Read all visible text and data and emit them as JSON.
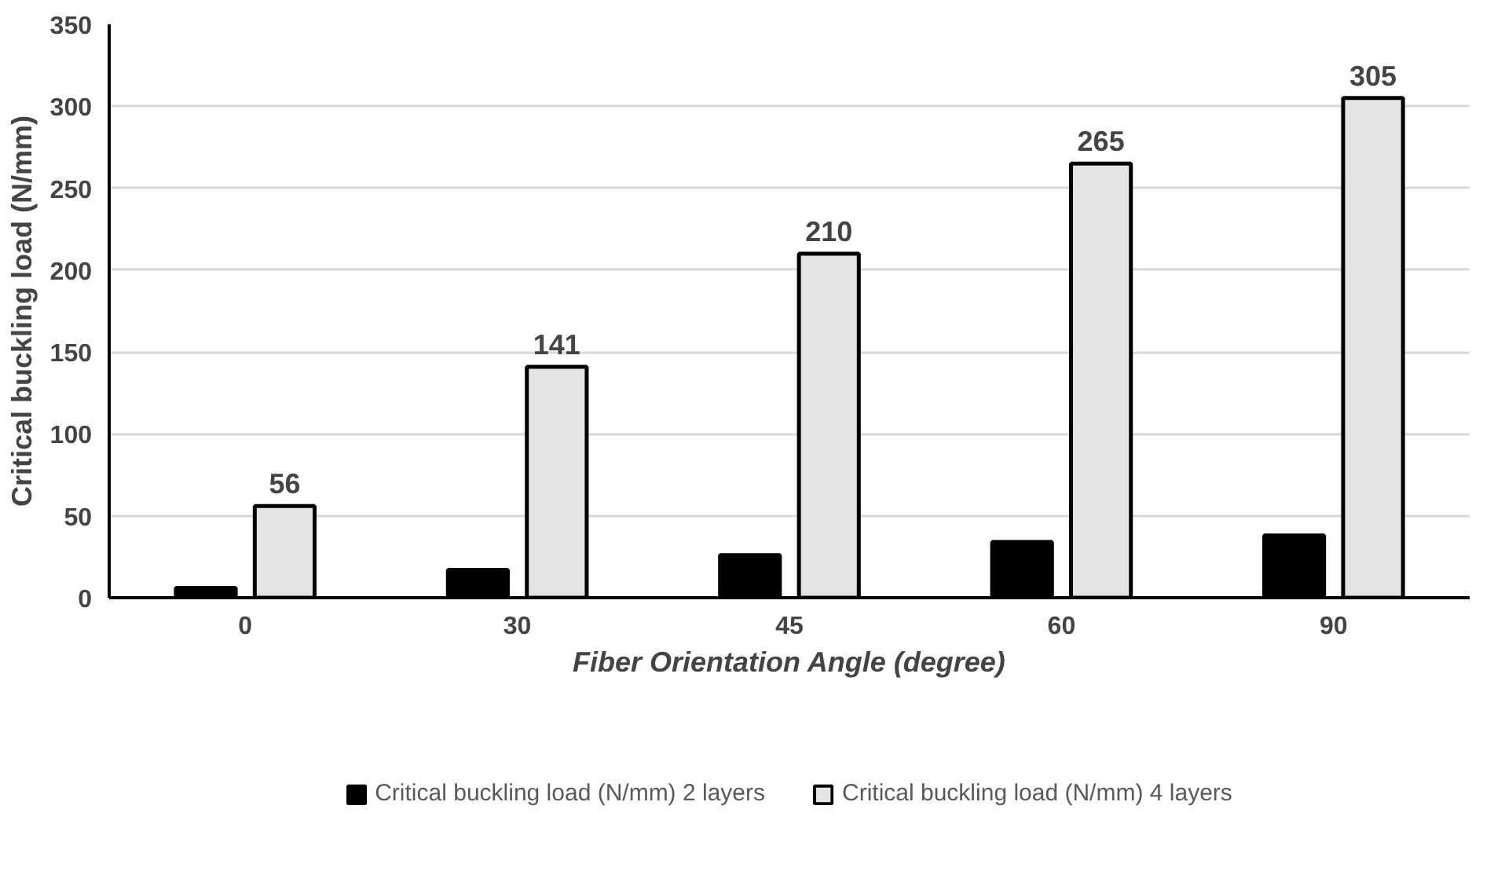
{
  "chart_data": {
    "type": "bar",
    "xlabel": "Fiber Orientation Angle (degree)",
    "ylabel": "Critical buckling load (N/mm)",
    "categories": [
      "0",
      "30",
      "45",
      "60",
      "90"
    ],
    "series": [
      {
        "name": "Critical buckling load (N/mm) 2 layers",
        "color": "#000000",
        "values": [
          6,
          17,
          26,
          34,
          38
        ]
      },
      {
        "name": "Critical buckling load (N/mm) 4 layers",
        "color": "#e4e4e4",
        "values": [
          56,
          141,
          210,
          265,
          305
        ],
        "value_labels": [
          "56",
          "141",
          "210",
          "265",
          "305"
        ]
      }
    ],
    "ylim": [
      0,
      350
    ],
    "yticks": [
      0,
      50,
      100,
      150,
      200,
      250,
      300,
      350
    ],
    "grid": "y",
    "legend": "bottom"
  }
}
